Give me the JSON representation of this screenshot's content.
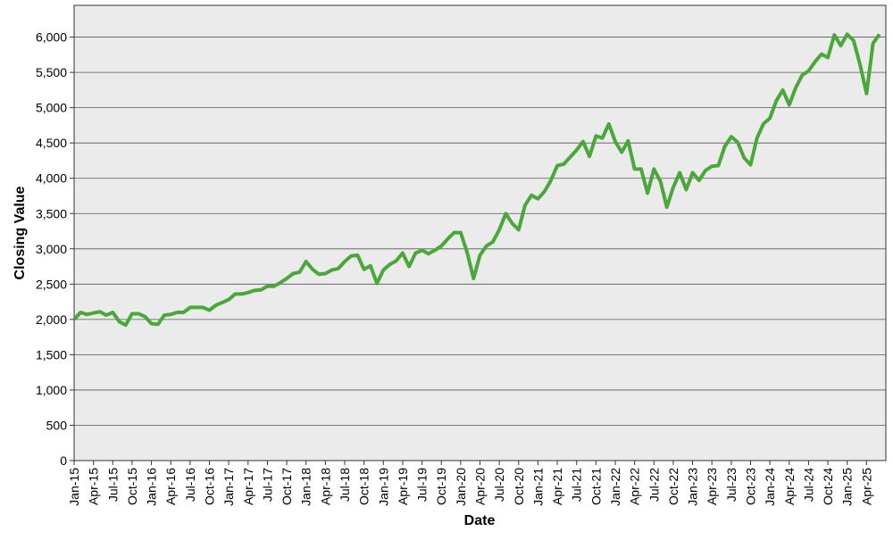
{
  "chart_data": {
    "type": "line",
    "x_label": "Date",
    "y_label": "Closing Value",
    "categories": [
      "Jan-15",
      null,
      null,
      "Apr-15",
      null,
      null,
      "Jul-15",
      null,
      null,
      "Oct-15",
      null,
      null,
      "Jan-16",
      null,
      null,
      "Apr-16",
      null,
      null,
      "Jul-16",
      null,
      null,
      "Oct-16",
      null,
      null,
      "Jan-17",
      null,
      null,
      "Apr-17",
      null,
      null,
      "Jul-17",
      null,
      null,
      "Oct-17",
      null,
      null,
      "Jan-18",
      null,
      null,
      "Apr-18",
      null,
      null,
      "Jul-18",
      null,
      null,
      "Oct-18",
      null,
      null,
      "Jan-19",
      null,
      null,
      "Apr-19",
      null,
      null,
      "Jul-19",
      null,
      null,
      "Oct-19",
      null,
      null,
      "Jan-20",
      null,
      null,
      "Apr-20",
      null,
      null,
      "Jul-20",
      null,
      null,
      "Oct-20",
      null,
      null,
      "Jan-21",
      null,
      null,
      "Apr-21",
      null,
      null,
      "Jul-21",
      null,
      null,
      "Oct-21",
      null,
      null,
      "Jan-22",
      null,
      null,
      "Apr-22",
      null,
      null,
      "Jul-22",
      null,
      null,
      "Oct-22",
      null,
      null,
      "Jan-23",
      null,
      null,
      "Apr-23",
      null,
      null,
      "Jul-23",
      null,
      null,
      "Oct-23",
      null,
      null,
      "Jan-24",
      null,
      null,
      "Apr-24",
      null,
      null,
      "Jul-24",
      null,
      null,
      "Oct-24",
      null,
      null,
      "Jan-25",
      null,
      null,
      "Apr-25",
      null,
      null
    ],
    "series": [
      {
        "color": "#4aa83a",
        "values": [
          2000,
          2100,
          2070,
          2090,
          2110,
          2060,
          2100,
          1970,
          1920,
          2080,
          2080,
          2040,
          1940,
          1930,
          2060,
          2070,
          2100,
          2100,
          2170,
          2170,
          2170,
          2130,
          2200,
          2240,
          2280,
          2360,
          2360,
          2380,
          2410,
          2420,
          2470,
          2470,
          2520,
          2580,
          2650,
          2670,
          2820,
          2710,
          2640,
          2650,
          2700,
          2720,
          2820,
          2900,
          2910,
          2710,
          2760,
          2510,
          2700,
          2780,
          2830,
          2940,
          2750,
          2940,
          2980,
          2930,
          2980,
          3040,
          3140,
          3230,
          3230,
          2950,
          2580,
          2910,
          3040,
          3100,
          3270,
          3500,
          3360,
          3270,
          3620,
          3760,
          3710,
          3810,
          3970,
          4180,
          4200,
          4300,
          4400,
          4520,
          4310,
          4600,
          4570,
          4770,
          4520,
          4370,
          4530,
          4130,
          4130,
          3790,
          4130,
          3960,
          3590,
          3870,
          4080,
          3840,
          4080,
          3970,
          4110,
          4170,
          4180,
          4450,
          4590,
          4510,
          4290,
          4190,
          4570,
          4770,
          4850,
          5100,
          5250,
          5040,
          5280,
          5460,
          5520,
          5650,
          5760,
          5710,
          6030,
          5880,
          6040,
          5950,
          5610,
          5200,
          5910,
          6040
        ]
      }
    ],
    "ylim": [
      0,
      6450
    ],
    "yticks": [
      0,
      500,
      {
        "value": 1000,
        "label": "1,000"
      },
      {
        "value": 1500,
        "label": "1,500"
      },
      {
        "value": 2000,
        "label": "2,000"
      },
      {
        "value": 2500,
        "label": "2,500"
      },
      {
        "value": 3000,
        "label": "3,000"
      },
      {
        "value": 3500,
        "label": "3,500"
      },
      {
        "value": 4000,
        "label": "4,000"
      },
      {
        "value": 4500,
        "label": "4,500"
      },
      {
        "value": 5000,
        "label": "5,000"
      },
      {
        "value": 5500,
        "label": "5,500"
      },
      {
        "value": 6000,
        "label": "6,000"
      }
    ],
    "grid": true
  }
}
